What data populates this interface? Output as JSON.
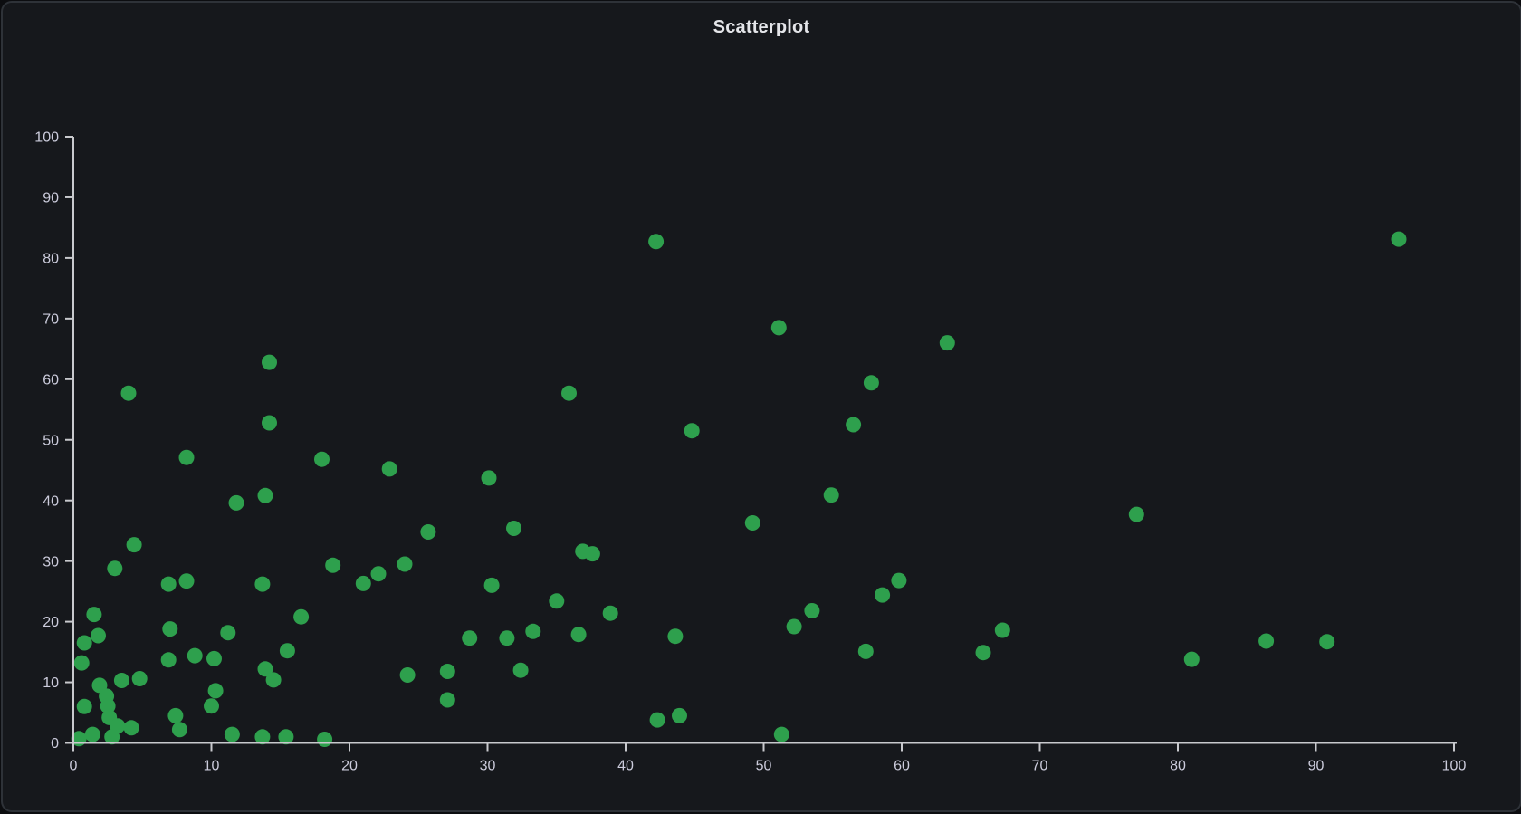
{
  "page": {
    "title": "Scatterplot"
  },
  "colors": {
    "page_background": "#0c0d10",
    "panel_background": "#16181c",
    "panel_border": "#2e3238",
    "point": "#2ea04d",
    "axis_line": "#c8c9cd",
    "tick_text": "#ccccdc",
    "title_text": "#e4e5e9"
  },
  "chart_data": {
    "type": "scatter",
    "title": "Scatterplot",
    "xlabel": "",
    "ylabel": "",
    "xlim": [
      0,
      100
    ],
    "ylim": [
      0,
      100
    ],
    "x_ticks": [
      0,
      10,
      20,
      30,
      40,
      50,
      60,
      70,
      80,
      90,
      100
    ],
    "y_ticks": [
      0,
      10,
      20,
      30,
      40,
      50,
      60,
      70,
      80,
      90,
      100
    ],
    "grid": false,
    "legend_position": "none",
    "series": [
      {
        "name": "points",
        "marker": "circle",
        "points": [
          [
            42.2,
            82.7
          ],
          [
            96.0,
            83.1
          ],
          [
            51.1,
            68.5
          ],
          [
            63.3,
            66.0
          ],
          [
            14.2,
            62.8
          ],
          [
            57.8,
            59.4
          ],
          [
            4.0,
            57.7
          ],
          [
            35.9,
            57.7
          ],
          [
            14.2,
            52.8
          ],
          [
            44.8,
            51.5
          ],
          [
            56.5,
            52.5
          ],
          [
            8.2,
            47.1
          ],
          [
            18.0,
            46.8
          ],
          [
            22.9,
            45.2
          ],
          [
            30.1,
            43.7
          ],
          [
            54.9,
            40.9
          ],
          [
            11.8,
            39.6
          ],
          [
            13.9,
            40.8
          ],
          [
            77.0,
            37.7
          ],
          [
            25.7,
            34.8
          ],
          [
            31.9,
            35.4
          ],
          [
            49.2,
            36.3
          ],
          [
            4.4,
            32.7
          ],
          [
            3.0,
            28.8
          ],
          [
            18.8,
            29.3
          ],
          [
            24.0,
            29.5
          ],
          [
            22.1,
            27.9
          ],
          [
            21.0,
            26.3
          ],
          [
            30.3,
            26.0
          ],
          [
            36.9,
            31.6
          ],
          [
            37.6,
            31.2
          ],
          [
            35.0,
            23.4
          ],
          [
            38.9,
            21.4
          ],
          [
            6.9,
            26.2
          ],
          [
            8.2,
            26.7
          ],
          [
            13.7,
            26.2
          ],
          [
            1.5,
            21.2
          ],
          [
            16.5,
            20.8
          ],
          [
            52.2,
            19.2
          ],
          [
            53.5,
            21.8
          ],
          [
            58.6,
            24.4
          ],
          [
            59.8,
            26.8
          ],
          [
            67.3,
            18.6
          ],
          [
            0.8,
            16.5
          ],
          [
            1.8,
            17.7
          ],
          [
            7.0,
            18.8
          ],
          [
            11.2,
            18.2
          ],
          [
            33.3,
            18.4
          ],
          [
            36.6,
            17.9
          ],
          [
            28.7,
            17.3
          ],
          [
            31.4,
            17.3
          ],
          [
            43.6,
            17.6
          ],
          [
            57.4,
            15.1
          ],
          [
            65.9,
            14.9
          ],
          [
            10.2,
            13.9
          ],
          [
            81.0,
            13.8
          ],
          [
            86.4,
            16.8
          ],
          [
            90.8,
            16.7
          ],
          [
            6.9,
            13.7
          ],
          [
            8.8,
            14.4
          ],
          [
            15.5,
            15.2
          ],
          [
            13.9,
            12.2
          ],
          [
            14.5,
            10.4
          ],
          [
            0.6,
            13.2
          ],
          [
            24.2,
            11.2
          ],
          [
            27.1,
            11.8
          ],
          [
            32.4,
            12.0
          ],
          [
            27.1,
            7.1
          ],
          [
            3.5,
            10.3
          ],
          [
            4.8,
            10.6
          ],
          [
            1.9,
            9.5
          ],
          [
            2.4,
            7.7
          ],
          [
            2.5,
            6.1
          ],
          [
            2.6,
            4.2
          ],
          [
            0.8,
            6.0
          ],
          [
            7.4,
            4.5
          ],
          [
            7.7,
            2.2
          ],
          [
            10.3,
            8.6
          ],
          [
            10.0,
            6.1
          ],
          [
            51.3,
            1.4
          ],
          [
            42.3,
            3.8
          ],
          [
            43.9,
            4.5
          ],
          [
            18.2,
            0.6
          ],
          [
            15.4,
            1.0
          ],
          [
            11.5,
            1.4
          ],
          [
            13.7,
            1.0
          ],
          [
            3.2,
            2.8
          ],
          [
            4.2,
            2.5
          ],
          [
            1.4,
            1.4
          ],
          [
            2.8,
            1.0
          ],
          [
            0.4,
            0.7
          ]
        ]
      }
    ]
  }
}
